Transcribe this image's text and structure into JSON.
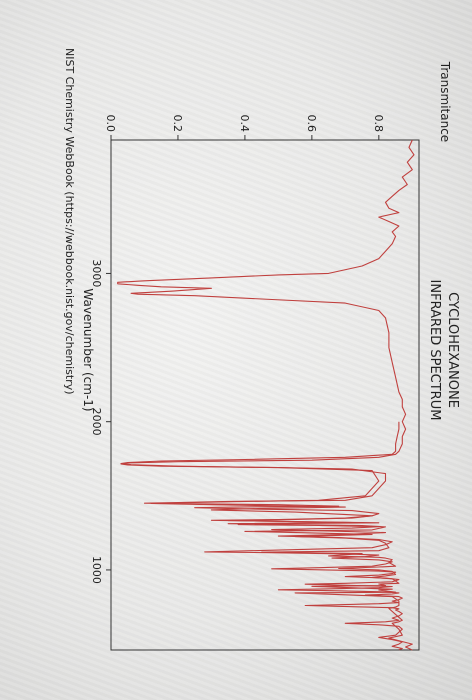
{
  "chart_data": {
    "type": "line",
    "title": "CYCLOHEXANONE",
    "subtitle": "INFRARED SPECTRUM",
    "xlabel": "Wavenumber (cm-1)",
    "ylabel": "Transmitance",
    "source": "NIST Chemistry WebBook (https://webbook.nist.gov/chemistry)",
    "x_ticks": [
      {
        "value": 3000,
        "label": "3000"
      },
      {
        "value": 2000,
        "label": "2000"
      },
      {
        "value": 1000,
        "label": "1000"
      }
    ],
    "y_ticks": [
      {
        "value": 0.0,
        "label": "0.0"
      },
      {
        "value": 0.2,
        "label": "0.2"
      },
      {
        "value": 0.4,
        "label": "0.4"
      },
      {
        "value": 0.6,
        "label": "0.6"
      },
      {
        "value": 0.8,
        "label": "0.8"
      }
    ],
    "xlim": [
      3900,
      460
    ],
    "ylim": [
      0,
      0.92
    ],
    "grid": false,
    "series": [
      {
        "color": "#c0403e",
        "x": [
          3900,
          3850,
          3800,
          3750,
          3700,
          3650,
          3600,
          3560,
          3520,
          3480,
          3440,
          3410,
          3380,
          3350,
          3320,
          3280,
          3250,
          3200,
          3150,
          3100,
          3050,
          3000,
          2990,
          2970,
          2950,
          2940,
          2930,
          2920,
          2910,
          2900,
          2880,
          2866,
          2860,
          2850,
          2800,
          2750,
          2700,
          2600,
          2500,
          2400,
          2300,
          2200,
          2150,
          2100,
          2050,
          2000,
          1950,
          1900,
          1850,
          1800,
          1780,
          1760,
          1740,
          1730,
          1722,
          1715,
          1708,
          1700,
          1690,
          1680,
          1650,
          1600,
          1550,
          1500,
          1470,
          1462,
          1455,
          1450,
          1446,
          1440,
          1430,
          1425,
          1420,
          1410,
          1400,
          1380,
          1365,
          1350,
          1340,
          1335,
          1320,
          1312,
          1305,
          1300,
          1290,
          1270,
          1260,
          1250,
          1240,
          1225,
          1215,
          1200,
          1180,
          1150,
          1130,
          1120,
          1110,
          1095,
          1085,
          1080,
          1070,
          1050,
          1025,
          1020,
          1010,
          1000,
          990,
          970,
          960,
          950,
          940,
          910,
          905,
          895,
          890,
          870,
          865,
          850,
          845,
          820,
          790,
          760,
          750,
          740,
          700,
          660,
          650,
          640,
          600,
          560,
          540,
          500,
          480,
          460
        ],
        "y": [
          0.9,
          0.89,
          0.905,
          0.885,
          0.9,
          0.87,
          0.885,
          0.86,
          0.84,
          0.82,
          0.83,
          0.86,
          0.8,
          0.83,
          0.86,
          0.84,
          0.85,
          0.84,
          0.82,
          0.8,
          0.75,
          0.65,
          0.5,
          0.3,
          0.1,
          0.02,
          0.02,
          0.08,
          0.15,
          0.3,
          0.18,
          0.06,
          0.08,
          0.25,
          0.7,
          0.8,
          0.82,
          0.83,
          0.83,
          0.84,
          0.85,
          0.86,
          0.87,
          0.87,
          0.88,
          0.87,
          0.88,
          0.87,
          0.87,
          0.86,
          0.85,
          0.8,
          0.6,
          0.2,
          0.05,
          0.03,
          0.05,
          0.15,
          0.5,
          0.72,
          0.82,
          0.82,
          0.8,
          0.78,
          0.7,
          0.35,
          0.2,
          0.1,
          0.25,
          0.5,
          0.68,
          0.4,
          0.25,
          0.45,
          0.72,
          0.8,
          0.78,
          0.7,
          0.5,
          0.3,
          0.72,
          0.35,
          0.55,
          0.75,
          0.82,
          0.78,
          0.4,
          0.6,
          0.78,
          0.55,
          0.7,
          0.8,
          0.82,
          0.83,
          0.8,
          0.45,
          0.75,
          0.65,
          0.8,
          0.82,
          0.84,
          0.83,
          0.85,
          0.8,
          0.68,
          0.8,
          0.84,
          0.85,
          0.82,
          0.78,
          0.84,
          0.86,
          0.8,
          0.82,
          0.6,
          0.84,
          0.8,
          0.85,
          0.55,
          0.84,
          0.86,
          0.86,
          0.85,
          0.83,
          0.85,
          0.87,
          0.86,
          0.84,
          0.86,
          0.87,
          0.83,
          0.9,
          0.88,
          0.9
        ]
      },
      {
        "color": "#c0403e",
        "x": [
          2000,
          1950,
          1900,
          1850,
          1800,
          1780,
          1760,
          1745,
          1735,
          1725,
          1718,
          1710,
          1700,
          1690,
          1670,
          1600,
          1550,
          1500,
          1470,
          1462,
          1455,
          1448,
          1440,
          1430,
          1424,
          1415,
          1405,
          1390,
          1365,
          1350,
          1340,
          1333,
          1325,
          1318,
          1313,
          1306,
          1300,
          1292,
          1282,
          1272,
          1262,
          1252,
          1240,
          1228,
          1218,
          1205,
          1190,
          1170,
          1150,
          1140,
          1130,
          1122,
          1116,
          1108,
          1100,
          1090,
          1080,
          1068,
          1055,
          1040,
          1025,
          1015,
          1008,
          1000,
          992,
          985,
          975,
          965,
          955,
          945,
          935,
          920,
          910,
          904,
          896,
          888,
          880,
          872,
          866,
          860,
          852,
          845,
          838,
          830,
          820,
          810,
          800,
          790,
          780,
          772,
          766,
          760,
          752,
          745,
          738,
          730,
          720,
          705,
          690,
          675,
          660,
          650,
          640,
          630,
          620,
          600,
          580,
          560,
          545,
          530,
          515,
          500,
          485,
          470,
          462
        ],
        "y": [
          0.86,
          0.86,
          0.855,
          0.85,
          0.85,
          0.84,
          0.7,
          0.4,
          0.15,
          0.05,
          0.03,
          0.06,
          0.2,
          0.5,
          0.78,
          0.8,
          0.78,
          0.76,
          0.62,
          0.4,
          0.25,
          0.12,
          0.3,
          0.55,
          0.7,
          0.45,
          0.3,
          0.55,
          0.78,
          0.72,
          0.55,
          0.35,
          0.6,
          0.8,
          0.55,
          0.38,
          0.62,
          0.8,
          0.72,
          0.48,
          0.66,
          0.82,
          0.7,
          0.5,
          0.68,
          0.8,
          0.84,
          0.82,
          0.78,
          0.6,
          0.42,
          0.28,
          0.48,
          0.7,
          0.8,
          0.76,
          0.66,
          0.8,
          0.84,
          0.82,
          0.78,
          0.62,
          0.48,
          0.64,
          0.8,
          0.85,
          0.84,
          0.8,
          0.7,
          0.82,
          0.86,
          0.84,
          0.7,
          0.58,
          0.72,
          0.84,
          0.8,
          0.64,
          0.5,
          0.66,
          0.82,
          0.86,
          0.84,
          0.76,
          0.86,
          0.87,
          0.86,
          0.84,
          0.86,
          0.8,
          0.7,
          0.58,
          0.72,
          0.84,
          0.86,
          0.85,
          0.86,
          0.87,
          0.86,
          0.84,
          0.86,
          0.82,
          0.7,
          0.8,
          0.86,
          0.87,
          0.86,
          0.85,
          0.8,
          0.84,
          0.87,
          0.86,
          0.84,
          0.87,
          0.86
        ]
      }
    ]
  }
}
